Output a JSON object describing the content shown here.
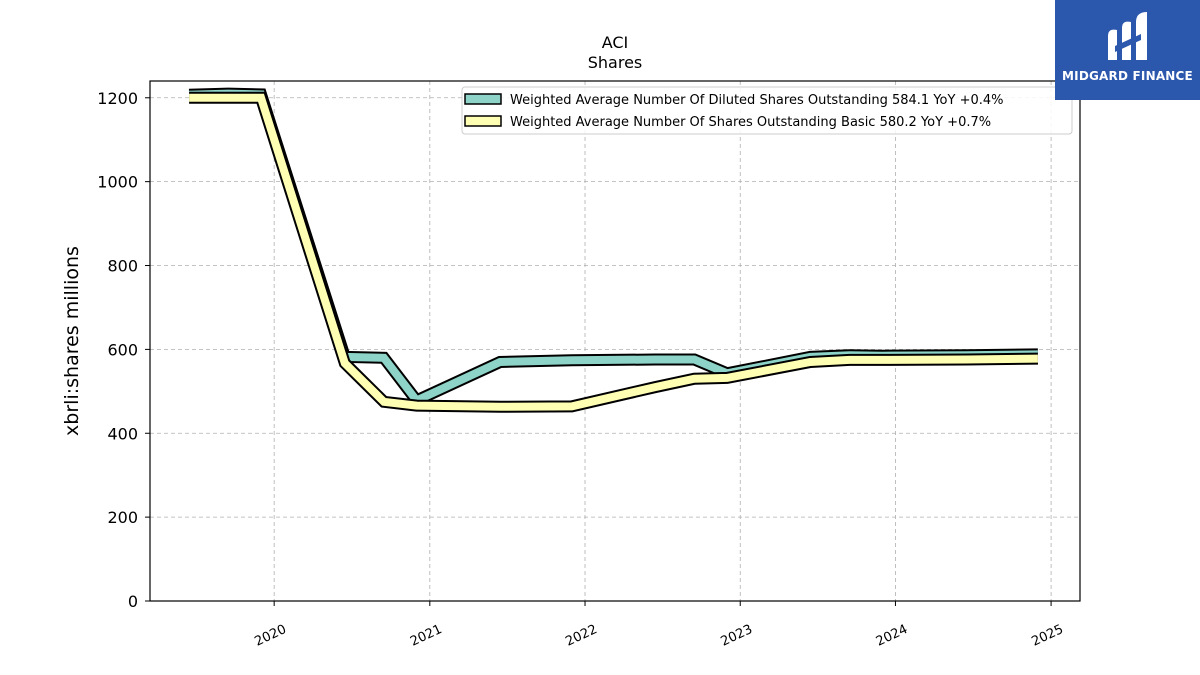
{
  "header": {
    "ticker": "ACI",
    "subtitle": "Shares"
  },
  "logo": {
    "name": "MIDGARD FINANCE",
    "icon": "midgard-logo-icon",
    "background": "#2b57ad"
  },
  "chart_data": {
    "type": "line",
    "title": "ACI",
    "subtitle": "Shares",
    "ylabel": "xbrli:shares millions",
    "xlabel": "",
    "xlim": [
      "2019-03-15",
      "2025-03-10"
    ],
    "ylim": [
      0,
      1240
    ],
    "xticks": [
      "2020",
      "2021",
      "2022",
      "2023",
      "2024",
      "2025"
    ],
    "yticks": [
      0,
      200,
      400,
      600,
      800,
      1000,
      1200
    ],
    "grid": true,
    "legend_position": "top-right",
    "series": [
      {
        "name": "Weighted Average Number Of Diluted Shares Outstanding",
        "legend_label": "Weighted Average Number Of Diluted Shares Outstanding  584.1 YoY +0.4%",
        "color": "#8dd3c7",
        "points": [
          [
            "2019-06-15",
            1207
          ],
          [
            "2019-09-15",
            1210
          ],
          [
            "2019-12-01",
            1208
          ],
          [
            "2020-06-15",
            582
          ],
          [
            "2020-09-15",
            580
          ],
          [
            "2020-12-01",
            478
          ],
          [
            "2021-06-15",
            570
          ],
          [
            "2021-12-01",
            574
          ],
          [
            "2022-06-15",
            576
          ],
          [
            "2022-09-15",
            576
          ],
          [
            "2022-12-01",
            543
          ],
          [
            "2023-06-15",
            582
          ],
          [
            "2023-09-15",
            586
          ],
          [
            "2023-12-01",
            585
          ],
          [
            "2024-06-15",
            586
          ],
          [
            "2024-12-01",
            588
          ]
        ]
      },
      {
        "name": "Weighted Average Number Of Shares Outstanding Basic",
        "legend_label": "Weighted Average Number Of Shares Outstanding Basic  580.2 YoY +0.7%",
        "color": "#ffffb3",
        "points": [
          [
            "2019-06-15",
            1200
          ],
          [
            "2019-09-15",
            1200
          ],
          [
            "2019-12-01",
            1200
          ],
          [
            "2020-06-15",
            567
          ],
          [
            "2020-09-15",
            475
          ],
          [
            "2020-12-01",
            466
          ],
          [
            "2021-06-15",
            463
          ],
          [
            "2021-12-01",
            464
          ],
          [
            "2022-06-15",
            510
          ],
          [
            "2022-09-15",
            530
          ],
          [
            "2022-12-01",
            532
          ],
          [
            "2023-06-15",
            570
          ],
          [
            "2023-09-15",
            575
          ],
          [
            "2023-12-01",
            575
          ],
          [
            "2024-06-15",
            576
          ],
          [
            "2024-12-01",
            578
          ]
        ]
      }
    ]
  }
}
